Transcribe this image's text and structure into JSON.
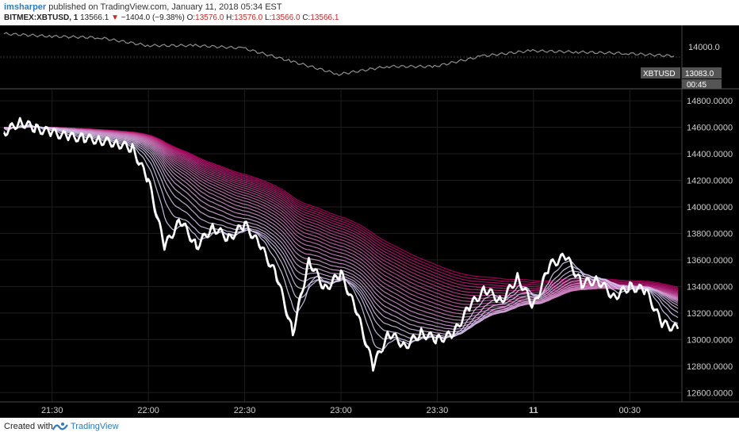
{
  "header": {
    "author": "imsharper",
    "published": "published on TradingView.com, January 11, 2018 05:34 EST",
    "symbol": "BITMEX:XBTUSD, 1",
    "last": "13566.1",
    "change": "−1404.0 (−9.38%)",
    "ohlc": [
      {
        "label": "O:",
        "value": "13576.0"
      },
      {
        "label": "H:",
        "value": "13576.0"
      },
      {
        "label": "L:",
        "value": "13566.0"
      },
      {
        "label": "C:",
        "value": "13566.1"
      }
    ]
  },
  "footer": {
    "created": "Created with",
    "brand": "TradingView"
  },
  "colors": {
    "price_line": "#ffffff",
    "ribbon_fast": "#d9dcff",
    "ribbon_slow": "#b0005f",
    "top_price": "#8f8f8f",
    "axis_text": "#cfcfcf",
    "badge": "#555555",
    "link": "#2e7bc2"
  },
  "chart_data": [
    {
      "type": "line",
      "panel": "top",
      "series": [
        {
          "name": "",
          "x": [
            "21:18",
            "21:30",
            "21:45",
            "22:00",
            "22:15",
            "22:30",
            "22:45",
            "23:00",
            "23:15",
            "23:30",
            "23:45",
            "00:00",
            "00:15",
            "00:30",
            "00:45"
          ],
          "values": [
            14110,
            14090,
            14080,
            14020,
            14020,
            14000,
            13900,
            13800,
            13860,
            13860,
            13940,
            13980,
            13970,
            13960,
            13940
          ]
        }
      ],
      "ylabels": [
        "14000.0"
      ],
      "badge_label": "XBTUSD",
      "badge_value": "13083.0",
      "badge_time": "00:45"
    },
    {
      "type": "line",
      "panel": "main",
      "x": [
        "21:15",
        "21:20",
        "21:25",
        "21:30",
        "21:35",
        "21:40",
        "21:45",
        "21:50",
        "21:55",
        "22:00",
        "22:05",
        "22:10",
        "22:15",
        "22:20",
        "22:25",
        "22:30",
        "22:35",
        "22:40",
        "22:45",
        "22:50",
        "22:55",
        "23:00",
        "23:05",
        "23:10",
        "23:15",
        "23:20",
        "23:25",
        "23:30",
        "23:35",
        "23:40",
        "23:45",
        "23:50",
        "23:55",
        "00:00",
        "00:05",
        "00:10",
        "00:15",
        "00:20",
        "00:25",
        "00:30",
        "00:35",
        "00:40",
        "00:45"
      ],
      "series": [
        {
          "name": "",
          "values": [
            14560,
            14640,
            14590,
            14560,
            14530,
            14520,
            14500,
            14480,
            14440,
            14200,
            13700,
            13900,
            13700,
            13850,
            13760,
            13870,
            13700,
            13480,
            13050,
            13600,
            13380,
            13500,
            13200,
            12800,
            13050,
            12950,
            13050,
            13000,
            13040,
            13250,
            13380,
            13290,
            13470,
            13250,
            13560,
            13630,
            13420,
            13450,
            13320,
            13400,
            13370,
            13120,
            13080
          ]
        }
      ],
      "ribbon_bands": 26,
      "ylim": [
        12530,
        14890
      ],
      "yticks": [
        12600,
        12800,
        13000,
        13200,
        13400,
        13600,
        13800,
        14000,
        14200,
        14400,
        14600,
        14800
      ],
      "ylabels": [
        "12600.0000",
        "12800.0000",
        "13000.0000",
        "13200.0000",
        "13400.0000",
        "13600.0000",
        "13800.0000",
        "14000.0000",
        "14200.0000",
        "14400.0000",
        "14600.0000",
        "14800.0000"
      ],
      "xtick_labels": [
        "21:30",
        "22:00",
        "22:30",
        "23:00",
        "23:30",
        "11",
        "00:30"
      ]
    }
  ]
}
